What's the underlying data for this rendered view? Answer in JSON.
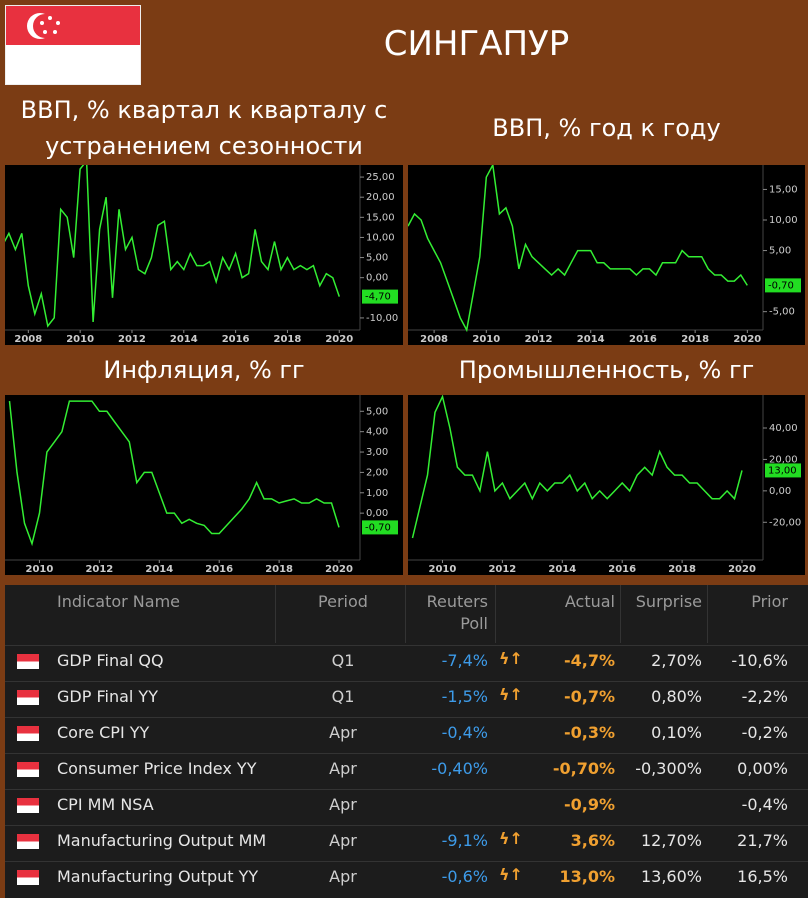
{
  "header": {
    "title": "СИНГАПУР"
  },
  "chart_data": [
    {
      "type": "line",
      "title": "ВВП, % квартал к кварталу с устранением сезонности",
      "color": "#33ee33",
      "x": [
        2007,
        2007.25,
        2007.5,
        2007.75,
        2008,
        2008.25,
        2008.5,
        2008.75,
        2009,
        2009.25,
        2009.5,
        2009.75,
        2010,
        2010.25,
        2010.5,
        2010.75,
        2011,
        2011.25,
        2011.5,
        2011.75,
        2012,
        2012.25,
        2012.5,
        2012.75,
        2013,
        2013.25,
        2013.5,
        2013.75,
        2014,
        2014.25,
        2014.5,
        2014.75,
        2015,
        2015.25,
        2015.5,
        2015.75,
        2016,
        2016.25,
        2016.5,
        2016.75,
        2017,
        2017.25,
        2017.5,
        2017.75,
        2018,
        2018.25,
        2018.5,
        2018.75,
        2019,
        2019.25,
        2019.5,
        2019.75,
        2020
      ],
      "values": [
        8,
        11,
        7,
        11,
        -2,
        -9,
        -4,
        -12,
        -10,
        17,
        15,
        5,
        27,
        29,
        -11,
        12,
        20,
        -5,
        17,
        7,
        10,
        2,
        1,
        5,
        13,
        14,
        2,
        4,
        2,
        6,
        3,
        3,
        4,
        -1,
        5,
        2,
        6,
        0,
        1,
        12,
        4,
        2,
        9,
        2,
        5,
        2,
        3,
        2,
        3,
        -2,
        1,
        0,
        -4.7
      ],
      "xlim": [
        2007.1,
        2020.8
      ],
      "xticks": [
        2008,
        2010,
        2012,
        2014,
        2016,
        2018,
        2020
      ],
      "ylim": [
        -13,
        28
      ],
      "yticks": [
        {
          "value": 25,
          "label": "25,00"
        },
        {
          "value": 20,
          "label": "20,00"
        },
        {
          "value": 15,
          "label": "15,00"
        },
        {
          "value": 10,
          "label": "10,00"
        },
        {
          "value": 5,
          "label": "5,00"
        },
        {
          "value": 0,
          "label": "0,00"
        },
        {
          "value": -10,
          "label": "-10,00"
        }
      ],
      "last_value": {
        "value": -4.7,
        "label": "-4,70"
      }
    },
    {
      "type": "line",
      "title": "ВВП, % год к году",
      "color": "#33ee33",
      "x": [
        2007,
        2007.25,
        2007.5,
        2007.75,
        2008,
        2008.25,
        2008.5,
        2008.75,
        2009,
        2009.25,
        2009.5,
        2009.75,
        2010,
        2010.25,
        2010.5,
        2010.75,
        2011,
        2011.25,
        2011.5,
        2011.75,
        2012,
        2012.25,
        2012.5,
        2012.75,
        2013,
        2013.25,
        2013.5,
        2013.75,
        2014,
        2014.25,
        2014.5,
        2014.75,
        2015,
        2015.25,
        2015.5,
        2015.75,
        2016,
        2016.25,
        2016.5,
        2016.75,
        2017,
        2017.25,
        2017.5,
        2017.75,
        2018,
        2018.25,
        2018.5,
        2018.75,
        2019,
        2019.25,
        2019.5,
        2019.75,
        2020
      ],
      "values": [
        9,
        11,
        10,
        7,
        5,
        3,
        0,
        -3,
        -6,
        -8,
        -2,
        4,
        17,
        19,
        11,
        12,
        9,
        2,
        6,
        4,
        3,
        2,
        1,
        2,
        1,
        3,
        5,
        5,
        5,
        3,
        3,
        2,
        2,
        2,
        2,
        1,
        2,
        2,
        1,
        3,
        3,
        3,
        5,
        4,
        4,
        4,
        2,
        1,
        1,
        0,
        0,
        1,
        -0.7
      ],
      "xlim": [
        2007.0,
        2020.6
      ],
      "xticks": [
        2008,
        2010,
        2012,
        2014,
        2016,
        2018,
        2020
      ],
      "ylim": [
        -8,
        19
      ],
      "yticks": [
        {
          "value": 15,
          "label": "15,00"
        },
        {
          "value": 10,
          "label": "10,00"
        },
        {
          "value": 5,
          "label": "5,00"
        },
        {
          "value": -5,
          "label": "-5,00"
        }
      ],
      "last_value": {
        "value": -0.7,
        "label": "-0,70"
      }
    },
    {
      "type": "line",
      "title": "Инфляция, % гг",
      "color": "#33ee33",
      "x": [
        2009,
        2009.25,
        2009.5,
        2009.75,
        2010,
        2010.25,
        2010.5,
        2010.75,
        2011,
        2011.25,
        2011.5,
        2011.75,
        2012,
        2012.25,
        2012.5,
        2012.75,
        2013,
        2013.25,
        2013.5,
        2013.75,
        2014,
        2014.25,
        2014.5,
        2014.75,
        2015,
        2015.25,
        2015.5,
        2015.75,
        2016,
        2016.25,
        2016.5,
        2016.75,
        2017,
        2017.25,
        2017.5,
        2017.75,
        2018,
        2018.25,
        2018.5,
        2018.75,
        2019,
        2019.25,
        2019.5,
        2019.75,
        2020
      ],
      "values": [
        5.5,
        2,
        -0.5,
        -1.5,
        0,
        3,
        3.5,
        4,
        5.5,
        5.5,
        5.5,
        5.5,
        5,
        5,
        4.5,
        4,
        3.5,
        1.5,
        2,
        2,
        1,
        0,
        0,
        -0.5,
        -0.3,
        -0.5,
        -0.6,
        -1,
        -1,
        -0.6,
        -0.2,
        0.2,
        0.7,
        1.5,
        0.7,
        0.7,
        0.5,
        0.6,
        0.7,
        0.5,
        0.5,
        0.7,
        0.5,
        0.5,
        -0.7
      ],
      "xlim": [
        2008.85,
        2020.7
      ],
      "xticks": [
        2010,
        2012,
        2014,
        2016,
        2018,
        2020
      ],
      "ylim": [
        -2.3,
        5.8
      ],
      "yticks": [
        {
          "value": 5,
          "label": "5,00"
        },
        {
          "value": 4,
          "label": "4,00"
        },
        {
          "value": 3,
          "label": "3,00"
        },
        {
          "value": 2,
          "label": "2,00"
        },
        {
          "value": 1,
          "label": "1,00"
        },
        {
          "value": 0,
          "label": "0,00"
        }
      ],
      "last_value": {
        "value": -0.7,
        "label": "-0,70"
      }
    },
    {
      "type": "line",
      "title": "Промышленность, % гг",
      "color": "#33ee33",
      "x": [
        2009,
        2009.25,
        2009.5,
        2009.75,
        2010,
        2010.25,
        2010.5,
        2010.75,
        2011,
        2011.25,
        2011.5,
        2011.75,
        2012,
        2012.25,
        2012.5,
        2012.75,
        2013,
        2013.25,
        2013.5,
        2013.75,
        2014,
        2014.25,
        2014.5,
        2014.75,
        2015,
        2015.25,
        2015.5,
        2015.75,
        2016,
        2016.25,
        2016.5,
        2016.75,
        2017,
        2017.25,
        2017.5,
        2017.75,
        2018,
        2018.25,
        2018.5,
        2018.75,
        2019,
        2019.25,
        2019.5,
        2019.75,
        2020
      ],
      "values": [
        -30,
        -10,
        10,
        50,
        60,
        40,
        15,
        10,
        10,
        0,
        25,
        0,
        5,
        -5,
        0,
        5,
        -5,
        5,
        0,
        5,
        5,
        10,
        0,
        5,
        -5,
        0,
        -5,
        0,
        5,
        0,
        10,
        15,
        10,
        25,
        15,
        10,
        10,
        5,
        5,
        0,
        -5,
        -5,
        0,
        -5,
        13
      ],
      "xlim": [
        2008.85,
        2020.7
      ],
      "xticks": [
        2010,
        2012,
        2014,
        2016,
        2018,
        2020
      ],
      "ylim": [
        -44,
        61
      ],
      "yticks": [
        {
          "value": 40,
          "label": "40,00"
        },
        {
          "value": 20,
          "label": "20,00"
        },
        {
          "value": 0,
          "label": "0,00"
        },
        {
          "value": -20,
          "label": "-20,00"
        }
      ],
      "last_value": {
        "value": 13,
        "label": "13,00"
      }
    }
  ],
  "table": {
    "columns": [
      "Indicator Name",
      "Period",
      "Reuters Poll",
      "Actual",
      "Surprise",
      "Prior"
    ],
    "rows": [
      [
        "GDP Final QQ",
        "Q1",
        "-7,4%",
        "-4,7%",
        "2,70%",
        "-10,6%"
      ],
      [
        "GDP Final YY",
        "Q1",
        "-1,5%",
        "-0,7%",
        "0,80%",
        "-2,2%"
      ],
      [
        "Core CPI YY",
        "Apr",
        "-0,4%",
        "-0,3%",
        "0,10%",
        "-0,2%"
      ],
      [
        "Consumer Price Index YY",
        "Apr",
        "-0,40%",
        "-0,70%",
        "-0,300%",
        "0,00%"
      ],
      [
        "CPI MM NSA",
        "Apr",
        null,
        "-0,9%",
        null,
        "-0,4%"
      ],
      [
        "Manufacturing Output MM",
        "Apr",
        "-9,1%",
        "3,6%",
        "12,70%",
        "21,7%"
      ],
      [
        "Manufacturing Output YY",
        "Apr",
        "-0,6%",
        "13,0%",
        "13,60%",
        "16,5%"
      ]
    ],
    "arrow_rows": [
      0,
      1,
      5,
      6
    ]
  }
}
